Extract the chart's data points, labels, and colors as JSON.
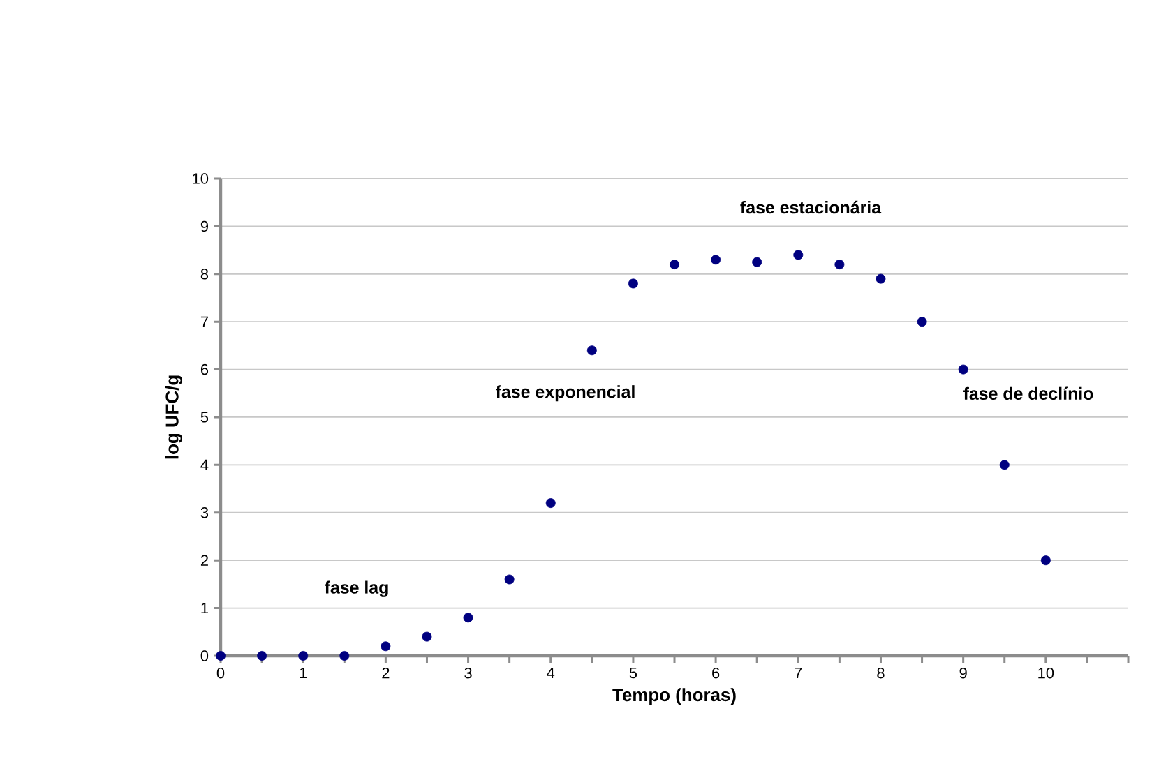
{
  "chart_data": {
    "type": "scatter",
    "xlabel": "Tempo (horas)",
    "ylabel": "log UFC/g",
    "x": [
      0,
      0.5,
      1,
      1.5,
      2,
      2.5,
      3,
      3.5,
      4,
      4.5,
      5,
      5.5,
      6,
      6.5,
      7,
      7.5,
      8,
      8.5,
      9,
      9.5,
      10
    ],
    "series": [
      {
        "color": "#000080",
        "values": [
          0,
          0,
          0,
          0,
          0.2,
          0.4,
          0.8,
          1.6,
          3.2,
          6.4,
          7.8,
          8.2,
          8.3,
          8.25,
          8.4,
          8.2,
          7.9,
          7.0,
          6.0,
          4.0,
          2.0
        ]
      }
    ],
    "xlim": [
      0,
      11
    ],
    "xticks": [
      0,
      {
        "value": 0.5,
        "label": null
      },
      1,
      {
        "value": 1.5,
        "label": null
      },
      2,
      {
        "value": 2.5,
        "label": null
      },
      3,
      {
        "value": 3.5,
        "label": null
      },
      4,
      {
        "value": 4.5,
        "label": null
      },
      5,
      {
        "value": 5.5,
        "label": null
      },
      6,
      {
        "value": 6.5,
        "label": null
      },
      7,
      {
        "value": 7.5,
        "label": null
      },
      8,
      {
        "value": 8.5,
        "label": null
      },
      9,
      {
        "value": 9.5,
        "label": null
      },
      10,
      {
        "value": 10.5,
        "label": null
      },
      {
        "value": 11,
        "label": null
      }
    ],
    "ylim": [
      0,
      10
    ],
    "yticks": [
      0,
      1,
      2,
      3,
      4,
      5,
      6,
      7,
      8,
      9,
      10
    ],
    "grid": "y",
    "annotations": [
      "fase lag",
      "fase exponencial",
      "fase estacionária",
      "fase de declínio"
    ]
  }
}
